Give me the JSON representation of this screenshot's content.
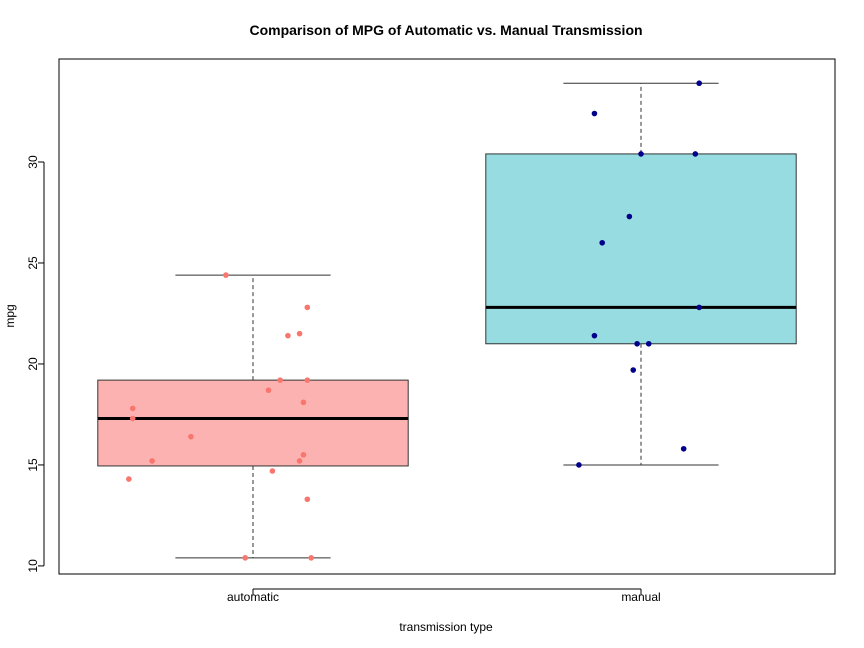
{
  "chart_data": {
    "type": "boxplot",
    "title": "Comparison of MPG of Automatic vs. Manual Transmission",
    "xlabel": "transmission type",
    "ylabel": "mpg",
    "ylim": [
      9.6,
      35.1
    ],
    "yticks": [
      10,
      15,
      20,
      25,
      30
    ],
    "grid": false,
    "categories": [
      "automatic",
      "manual"
    ],
    "boxes": [
      {
        "category": "automatic",
        "fill_color": "#FCB2B0",
        "point_color": "#F8766D",
        "whisker_low": 10.4,
        "q1": 14.95,
        "median": 17.3,
        "q3": 19.2,
        "whisker_high": 24.4,
        "points": [
          {
            "x": 0.93,
            "y": 24.4
          },
          {
            "x": 1.14,
            "y": 22.8
          },
          {
            "x": 1.12,
            "y": 21.5
          },
          {
            "x": 1.09,
            "y": 21.4
          },
          {
            "x": 1.07,
            "y": 19.2
          },
          {
            "x": 1.14,
            "y": 19.2
          },
          {
            "x": 1.04,
            "y": 18.7
          },
          {
            "x": 1.13,
            "y": 18.1
          },
          {
            "x": 0.69,
            "y": 17.8
          },
          {
            "x": 0.69,
            "y": 17.3
          },
          {
            "x": 0.84,
            "y": 16.4
          },
          {
            "x": 1.13,
            "y": 15.5
          },
          {
            "x": 0.74,
            "y": 15.2
          },
          {
            "x": 1.12,
            "y": 15.2
          },
          {
            "x": 1.05,
            "y": 14.7
          },
          {
            "x": 0.68,
            "y": 14.3
          },
          {
            "x": 1.14,
            "y": 13.3
          },
          {
            "x": 0.98,
            "y": 10.4
          },
          {
            "x": 1.15,
            "y": 10.4
          }
        ]
      },
      {
        "category": "manual",
        "fill_color": "#96DCE0",
        "point_color": "#00008B",
        "whisker_low": 15.0,
        "q1": 21.0,
        "median": 22.8,
        "q3": 30.4,
        "whisker_high": 33.9,
        "points": [
          {
            "x": 2.15,
            "y": 33.9
          },
          {
            "x": 1.88,
            "y": 32.4
          },
          {
            "x": 2.0,
            "y": 30.4
          },
          {
            "x": 2.14,
            "y": 30.4
          },
          {
            "x": 1.97,
            "y": 27.3
          },
          {
            "x": 1.9,
            "y": 26.0
          },
          {
            "x": 2.15,
            "y": 22.8
          },
          {
            "x": 1.88,
            "y": 21.4
          },
          {
            "x": 1.99,
            "y": 21.0
          },
          {
            "x": 2.02,
            "y": 21.0
          },
          {
            "x": 1.98,
            "y": 19.7
          },
          {
            "x": 2.11,
            "y": 15.8
          },
          {
            "x": 1.84,
            "y": 15.0
          }
        ]
      }
    ]
  }
}
